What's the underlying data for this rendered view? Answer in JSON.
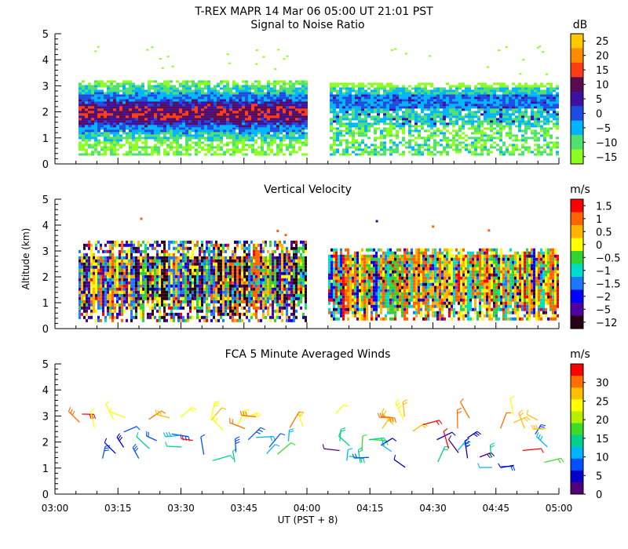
{
  "header": {
    "title": "T-REX   MAPR 14 Mar 06   05:00 UT   21:01   PST"
  },
  "axes": {
    "ylabel": "Altitude (km)",
    "xlabel": "UT  (PST + 8)"
  },
  "chart_data": [
    {
      "type": "heatmap",
      "title": "Signal to Noise Ratio",
      "ylim": [
        0,
        5
      ],
      "yticks": [
        "0",
        "1",
        "2",
        "3",
        "4",
        "5"
      ],
      "xticks": [
        "03:00",
        "03:15",
        "03:30",
        "03:45",
        "04:00",
        "04:15",
        "04:30",
        "04:45",
        "05:00"
      ],
      "colorbar": {
        "unit": "dB",
        "labels": [
          "25",
          "20",
          "15",
          "10",
          "5",
          "0",
          "−5",
          "−10",
          "−15"
        ],
        "colors": [
          "#ffc800",
          "#ff8c00",
          "#ff3c14",
          "#5a0a50",
          "#3c10a0",
          "#1e4ce0",
          "#00b4ff",
          "#50e070",
          "#8cff20"
        ]
      },
      "data_gap": [
        "04:00",
        "04:05"
      ],
      "layers": [
        {
          "alt_range": [
            0.4,
            3.2
          ],
          "level": "-15 to -10 dB"
        },
        {
          "alt_range": [
            0.8,
            3.0
          ],
          "level": "-10 to 0 dB"
        },
        {
          "alt_range": [
            1.3,
            2.7
          ],
          "level": "0 to 10 dB"
        },
        {
          "alt_range": [
            1.6,
            2.4
          ],
          "level": "10 to 20 dB (03:00-04:00)"
        }
      ]
    },
    {
      "type": "heatmap",
      "title": "Vertical Velocity",
      "ylim": [
        0,
        5
      ],
      "yticks": [
        "0",
        "1",
        "2",
        "3",
        "4",
        "5"
      ],
      "xticks": [
        "03:00",
        "03:15",
        "03:30",
        "03:45",
        "04:00",
        "04:15",
        "04:30",
        "04:45",
        "05:00"
      ],
      "colorbar": {
        "unit": "m/s",
        "labels": [
          "1.5",
          "1",
          "0.5",
          "0",
          "−0.5",
          "−1",
          "−1.5",
          "−2",
          "−5",
          "−12"
        ],
        "colors": [
          "#ff0000",
          "#ff6400",
          "#ffb400",
          "#ffff00",
          "#32d232",
          "#00dcc8",
          "#1e78ff",
          "#0000ff",
          "#5000a0",
          "#280014"
        ]
      },
      "data_gap": [
        "04:00",
        "04:05"
      ],
      "alt_range": [
        0.4,
        3.4
      ]
    },
    {
      "type": "scatter",
      "title": "FCA 5 Minute Averaged Winds",
      "ylim": [
        0,
        5
      ],
      "yticks": [
        "0",
        "1",
        "2",
        "3",
        "4",
        "5"
      ],
      "xticks": [
        "03:00",
        "03:15",
        "03:30",
        "03:45",
        "04:00",
        "04:15",
        "04:30",
        "04:45",
        "05:00"
      ],
      "colorbar": {
        "unit": "m/s",
        "labels": [
          "30",
          "25",
          "20",
          "15",
          "10",
          "5",
          "0"
        ],
        "colors": [
          "#ff0000",
          "#ff6e00",
          "#ffbe00",
          "#ffff00",
          "#b4f000",
          "#3cdc28",
          "#00d28c",
          "#00b4ff",
          "#0050ff",
          "#0000c8",
          "#500078"
        ]
      },
      "alt_range": [
        1.0,
        3.2
      ]
    }
  ]
}
